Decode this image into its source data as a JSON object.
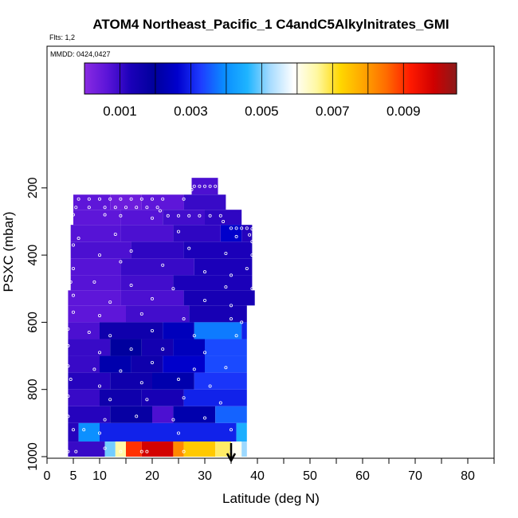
{
  "chart_data": {
    "type": "heatmap",
    "title": "ATOM4 Northeast_Pacific_1 C4andC5Alkylnitrates_GMI",
    "subtitle": "Flts: 1,2",
    "mmdd_label": "MMDD: 0424,0427",
    "xlabel": "Latitude (deg N)",
    "ylabel": "PSXC (mbar)",
    "xlim": [
      0,
      85
    ],
    "ylim": [
      1000,
      0
    ],
    "x_ticks": [
      0,
      5,
      10,
      20,
      30,
      40,
      50,
      60,
      70,
      80
    ],
    "x_tick_labels": [
      "0",
      "5",
      "10",
      "20",
      "30",
      "40",
      "50",
      "60",
      "70",
      "80"
    ],
    "y_ticks": [
      200,
      400,
      600,
      800,
      1000
    ],
    "y_tick_labels": [
      "200",
      "400",
      "600",
      "800",
      "1000"
    ],
    "colorbar": {
      "range": [
        0.0,
        0.0105
      ],
      "ticks": [
        0.001,
        0.003,
        0.005,
        0.007,
        0.009
      ],
      "tick_labels": [
        "0.001",
        "0.003",
        "0.005",
        "0.007",
        "0.009"
      ],
      "colors": [
        "#8a2be2",
        "#5a14d8",
        "#1a00b8",
        "#00009c",
        "#0000cd",
        "#1e3cff",
        "#0a8cff",
        "#1eb4ff",
        "#a8dcff",
        "#ffffff",
        "#fff8a0",
        "#ffd700",
        "#ffa500",
        "#ff6a00",
        "#ff1a00",
        "#d00000",
        "#8b1a1a"
      ]
    },
    "arrow_latitude": 35,
    "rows": [
      {
        "p_top": 170,
        "p_bot": 220,
        "segments": [
          {
            "x0": 27.5,
            "x1": 32.5,
            "v": 0.0008
          }
        ]
      },
      {
        "p_top": 220,
        "p_bot": 265,
        "segments": [
          {
            "x0": 5,
            "x1": 12,
            "v": 0.0006
          },
          {
            "x0": 12,
            "x1": 18,
            "v": 0.0004
          },
          {
            "x0": 18,
            "x1": 26,
            "v": 0.0006
          },
          {
            "x0": 26,
            "x1": 34,
            "v": 0.001
          }
        ]
      },
      {
        "p_top": 265,
        "p_bot": 310,
        "segments": [
          {
            "x0": 5,
            "x1": 14,
            "v": 0.0006
          },
          {
            "x0": 14,
            "x1": 22,
            "v": 0.0007
          },
          {
            "x0": 22,
            "x1": 30,
            "v": 0.0009
          },
          {
            "x0": 30,
            "x1": 37,
            "v": 0.0011
          }
        ]
      },
      {
        "p_top": 310,
        "p_bot": 360,
        "segments": [
          {
            "x0": 4.5,
            "x1": 14,
            "v": 0.0007
          },
          {
            "x0": 14,
            "x1": 24,
            "v": 0.0008
          },
          {
            "x0": 24,
            "x1": 33,
            "v": 0.0011
          },
          {
            "x0": 33,
            "x1": 37,
            "v": 0.0026
          },
          {
            "x0": 37,
            "x1": 39,
            "v": 0.0012
          }
        ]
      },
      {
        "p_top": 360,
        "p_bot": 410,
        "segments": [
          {
            "x0": 4.5,
            "x1": 16,
            "v": 0.0008
          },
          {
            "x0": 16,
            "x1": 26,
            "v": 0.0011
          },
          {
            "x0": 26,
            "x1": 39,
            "v": 0.0013
          }
        ]
      },
      {
        "p_top": 410,
        "p_bot": 460,
        "segments": [
          {
            "x0": 4.5,
            "x1": 14,
            "v": 0.0007
          },
          {
            "x0": 14,
            "x1": 28,
            "v": 0.001
          },
          {
            "x0": 28,
            "x1": 39,
            "v": 0.0013
          }
        ]
      },
      {
        "p_top": 460,
        "p_bot": 505,
        "segments": [
          {
            "x0": 4.5,
            "x1": 14,
            "v": 0.0007
          },
          {
            "x0": 14,
            "x1": 24,
            "v": 0.0009
          },
          {
            "x0": 24,
            "x1": 39,
            "v": 0.0013
          }
        ]
      },
      {
        "p_top": 505,
        "p_bot": 550,
        "segments": [
          {
            "x0": 4,
            "x1": 14,
            "v": 0.0006
          },
          {
            "x0": 14,
            "x1": 26,
            "v": 0.0008
          },
          {
            "x0": 26,
            "x1": 39.5,
            "v": 0.0014
          }
        ]
      },
      {
        "p_top": 550,
        "p_bot": 600,
        "segments": [
          {
            "x0": 4,
            "x1": 15,
            "v": 0.0006
          },
          {
            "x0": 15,
            "x1": 27,
            "v": 0.0009
          },
          {
            "x0": 27,
            "x1": 38,
            "v": 0.0014
          }
        ]
      },
      {
        "p_top": 600,
        "p_bot": 650,
        "segments": [
          {
            "x0": 4,
            "x1": 10,
            "v": 0.0008
          },
          {
            "x0": 10,
            "x1": 22,
            "v": 0.0016
          },
          {
            "x0": 22,
            "x1": 28,
            "v": 0.0024
          },
          {
            "x0": 28,
            "x1": 37,
            "v": 0.0038
          },
          {
            "x0": 37,
            "x1": 38,
            "v": 0.003
          }
        ]
      },
      {
        "p_top": 650,
        "p_bot": 700,
        "segments": [
          {
            "x0": 4,
            "x1": 12,
            "v": 0.001
          },
          {
            "x0": 12,
            "x1": 18,
            "v": 0.002
          },
          {
            "x0": 18,
            "x1": 24,
            "v": 0.0015
          },
          {
            "x0": 24,
            "x1": 30,
            "v": 0.0024
          },
          {
            "x0": 30,
            "x1": 38,
            "v": 0.0034
          }
        ]
      },
      {
        "p_top": 700,
        "p_bot": 750,
        "segments": [
          {
            "x0": 4,
            "x1": 10,
            "v": 0.001
          },
          {
            "x0": 10,
            "x1": 16,
            "v": 0.0022
          },
          {
            "x0": 16,
            "x1": 22,
            "v": 0.0016
          },
          {
            "x0": 22,
            "x1": 30,
            "v": 0.0026
          },
          {
            "x0": 30,
            "x1": 38,
            "v": 0.0034
          }
        ]
      },
      {
        "p_top": 750,
        "p_bot": 800,
        "segments": [
          {
            "x0": 4,
            "x1": 12,
            "v": 0.0012
          },
          {
            "x0": 12,
            "x1": 20,
            "v": 0.0016
          },
          {
            "x0": 20,
            "x1": 28,
            "v": 0.0022
          },
          {
            "x0": 28,
            "x1": 38,
            "v": 0.0032
          }
        ]
      },
      {
        "p_top": 800,
        "p_bot": 850,
        "segments": [
          {
            "x0": 4,
            "x1": 10,
            "v": 0.001
          },
          {
            "x0": 10,
            "x1": 18,
            "v": 0.0016
          },
          {
            "x0": 18,
            "x1": 26,
            "v": 0.0014
          },
          {
            "x0": 26,
            "x1": 38,
            "v": 0.003
          }
        ]
      },
      {
        "p_top": 850,
        "p_bot": 900,
        "segments": [
          {
            "x0": 4,
            "x1": 12,
            "v": 0.0012
          },
          {
            "x0": 12,
            "x1": 20,
            "v": 0.0018
          },
          {
            "x0": 20,
            "x1": 24,
            "v": 0.0008
          },
          {
            "x0": 24,
            "x1": 32,
            "v": 0.0022
          },
          {
            "x0": 32,
            "x1": 38,
            "v": 0.0036
          }
        ]
      },
      {
        "p_top": 900,
        "p_bot": 955,
        "segments": [
          {
            "x0": 4,
            "x1": 6,
            "v": 0.0012
          },
          {
            "x0": 6,
            "x1": 10,
            "v": 0.004
          },
          {
            "x0": 10,
            "x1": 36,
            "v": 0.003
          },
          {
            "x0": 36,
            "x1": 38,
            "v": 0.0045
          }
        ]
      },
      {
        "p_top": 955,
        "p_bot": 1000,
        "segments": [
          {
            "x0": 4,
            "x1": 11,
            "v": 0.001
          },
          {
            "x0": 11,
            "x1": 13,
            "v": 0.005
          },
          {
            "x0": 13,
            "x1": 15,
            "v": 0.0065
          },
          {
            "x0": 15,
            "x1": 18,
            "v": 0.009
          },
          {
            "x0": 18,
            "x1": 24,
            "v": 0.0098
          },
          {
            "x0": 24,
            "x1": 26,
            "v": 0.0082
          },
          {
            "x0": 26,
            "x1": 32,
            "v": 0.0074
          },
          {
            "x0": 32,
            "x1": 35,
            "v": 0.0068
          },
          {
            "x0": 35,
            "x1": 37,
            "v": 0.006
          },
          {
            "x0": 37,
            "x1": 38,
            "v": 0.0052
          }
        ]
      }
    ],
    "sample_points": [
      [
        28,
        195
      ],
      [
        29,
        195
      ],
      [
        30,
        195
      ],
      [
        31,
        195
      ],
      [
        32,
        195
      ],
      [
        27.5,
        205
      ],
      [
        6,
        233
      ],
      [
        8,
        233
      ],
      [
        10,
        233
      ],
      [
        12,
        233
      ],
      [
        14,
        233
      ],
      [
        16,
        233
      ],
      [
        18,
        233
      ],
      [
        20,
        233
      ],
      [
        22,
        233
      ],
      [
        26,
        233
      ],
      [
        5.5,
        258
      ],
      [
        8,
        258
      ],
      [
        11,
        258
      ],
      [
        13,
        258
      ],
      [
        15,
        258
      ],
      [
        17,
        258
      ],
      [
        19,
        258
      ],
      [
        21,
        258
      ],
      [
        21.5,
        268
      ],
      [
        23,
        283
      ],
      [
        25,
        283
      ],
      [
        27,
        283
      ],
      [
        29,
        283
      ],
      [
        31,
        283
      ],
      [
        33,
        283
      ],
      [
        5,
        280
      ],
      [
        11,
        280
      ],
      [
        14,
        283
      ],
      [
        20,
        290
      ],
      [
        33.5,
        300
      ],
      [
        35,
        320
      ],
      [
        36,
        320
      ],
      [
        37,
        320
      ],
      [
        38,
        320
      ],
      [
        39,
        322
      ],
      [
        38.5,
        340
      ],
      [
        39,
        360
      ],
      [
        6,
        350
      ],
      [
        13,
        338
      ],
      [
        25,
        330
      ],
      [
        36,
        345
      ],
      [
        39,
        400
      ],
      [
        39.5,
        420
      ],
      [
        38,
        440
      ],
      [
        5,
        370
      ],
      [
        10,
        400
      ],
      [
        16,
        388
      ],
      [
        27,
        380
      ],
      [
        34,
        395
      ],
      [
        5,
        440
      ],
      [
        14,
        420
      ],
      [
        22,
        430
      ],
      [
        30,
        450
      ],
      [
        35,
        460
      ],
      [
        4.5,
        480
      ],
      [
        9,
        480
      ],
      [
        16,
        490
      ],
      [
        24,
        500
      ],
      [
        34,
        495
      ],
      [
        39,
        500
      ],
      [
        5,
        520
      ],
      [
        12,
        540
      ],
      [
        20,
        530
      ],
      [
        30,
        535
      ],
      [
        35,
        550
      ],
      [
        5,
        570
      ],
      [
        10,
        580
      ],
      [
        18,
        575
      ],
      [
        26,
        590
      ],
      [
        35,
        590
      ],
      [
        37,
        600
      ],
      [
        4,
        620
      ],
      [
        8,
        630
      ],
      [
        12,
        640
      ],
      [
        20,
        625
      ],
      [
        28,
        640
      ],
      [
        36,
        640
      ],
      [
        4,
        670
      ],
      [
        10,
        690
      ],
      [
        16,
        680
      ],
      [
        22,
        680
      ],
      [
        30,
        690
      ],
      [
        4,
        730
      ],
      [
        9,
        740
      ],
      [
        14,
        745
      ],
      [
        20,
        720
      ],
      [
        28,
        740
      ],
      [
        34,
        735
      ],
      [
        4.5,
        770
      ],
      [
        10,
        790
      ],
      [
        18,
        780
      ],
      [
        25,
        770
      ],
      [
        31,
        790
      ],
      [
        4,
        820
      ],
      [
        12,
        830
      ],
      [
        19,
        830
      ],
      [
        26,
        825
      ],
      [
        33,
        840
      ],
      [
        4,
        880
      ],
      [
        11,
        890
      ],
      [
        17,
        880
      ],
      [
        24,
        890
      ],
      [
        30,
        885
      ],
      [
        5,
        920
      ],
      [
        7,
        920
      ],
      [
        10,
        930
      ],
      [
        25,
        930
      ],
      [
        35,
        920
      ],
      [
        4,
        985
      ],
      [
        5.5,
        985
      ],
      [
        11,
        975
      ],
      [
        14,
        985
      ],
      [
        18,
        985
      ],
      [
        19,
        985
      ],
      [
        26,
        985
      ],
      [
        35,
        985
      ]
    ]
  }
}
